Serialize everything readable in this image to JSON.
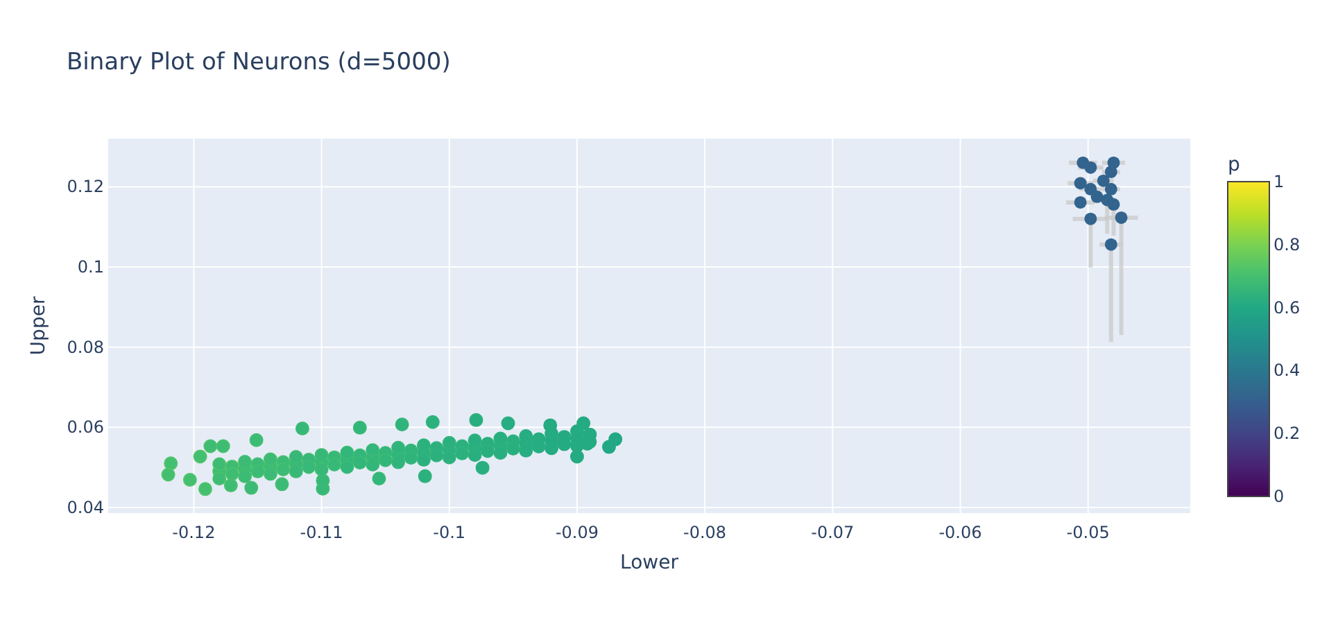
{
  "chart_data": {
    "type": "scatter",
    "title": "Binary Plot of Neurons (d=5000)",
    "xlabel": "Lower",
    "ylabel": "Upper",
    "clabel": "p",
    "xlim": [
      -0.1267,
      -0.042
    ],
    "ylim": [
      0.0386,
      0.132
    ],
    "xticks": [
      -0.12,
      -0.11,
      -0.1,
      -0.09,
      -0.08,
      -0.07,
      -0.06,
      -0.05
    ],
    "yticks": [
      0.04,
      0.06,
      0.08,
      0.1,
      0.12
    ],
    "clim": [
      0,
      1
    ],
    "cticks": [
      0,
      0.2,
      0.4,
      0.6,
      0.8,
      1
    ],
    "grid": true,
    "marker": "circle",
    "series": [
      {
        "x": [
          -0.1218,
          -0.122,
          -0.1203,
          -0.1191,
          -0.1187,
          -0.1195,
          -0.1177,
          -0.1151,
          -0.1115,
          -0.1099,
          -0.1155,
          -0.107,
          -0.1037,
          -0.1013,
          -0.0979,
          -0.0954,
          -0.0921,
          -0.0895,
          -0.087,
          -0.0875,
          -0.0892,
          -0.09,
          -0.0974,
          -0.1019,
          -0.1055,
          -0.1099,
          -0.1131,
          -0.1171,
          -0.118,
          -0.116,
          -0.114,
          -0.112,
          -0.11,
          -0.108,
          -0.106,
          -0.104,
          -0.102,
          -0.1,
          -0.098,
          -0.096,
          -0.094,
          -0.092,
          -0.09,
          -0.118,
          -0.116,
          -0.114,
          -0.112,
          -0.11,
          -0.108,
          -0.106,
          -0.104,
          -0.102,
          -0.1,
          -0.098,
          -0.096,
          -0.094,
          -0.092,
          -0.09,
          -0.118,
          -0.116,
          -0.114,
          -0.112,
          -0.11,
          -0.108,
          -0.106,
          -0.104,
          -0.102,
          -0.1,
          -0.098,
          -0.096,
          -0.094,
          -0.092,
          -0.09,
          -0.117,
          -0.115,
          -0.113,
          -0.111,
          -0.109,
          -0.107,
          -0.105,
          -0.103,
          -0.101,
          -0.099,
          -0.097,
          -0.095,
          -0.093,
          -0.091,
          -0.089,
          -0.117,
          -0.115,
          -0.113,
          -0.111,
          -0.109,
          -0.107,
          -0.105,
          -0.103,
          -0.101,
          -0.099,
          -0.097,
          -0.095,
          -0.093,
          -0.091,
          -0.089
        ],
        "values": [
          0.051,
          0.0482,
          0.0469,
          0.0446,
          0.0553,
          0.0527,
          0.0553,
          0.0568,
          0.0597,
          0.0447,
          0.0449,
          0.0599,
          0.0607,
          0.0613,
          0.0618,
          0.061,
          0.0605,
          0.061,
          0.057,
          0.0551,
          0.0559,
          0.0527,
          0.0499,
          0.0478,
          0.0472,
          0.0467,
          0.0458,
          0.0455,
          0.049,
          0.0496,
          0.0502,
          0.0508,
          0.0513,
          0.0519,
          0.0525,
          0.0531,
          0.0537,
          0.0543,
          0.0549,
          0.0554,
          0.056,
          0.0566,
          0.0572,
          0.0508,
          0.0514,
          0.052,
          0.0526,
          0.0531,
          0.0537,
          0.0543,
          0.0549,
          0.0555,
          0.0561,
          0.0567,
          0.0572,
          0.0578,
          0.0584,
          0.059,
          0.0472,
          0.0478,
          0.0484,
          0.049,
          0.0495,
          0.0501,
          0.0507,
          0.0513,
          0.0519,
          0.0525,
          0.0531,
          0.0536,
          0.0542,
          0.0548,
          0.0554,
          0.0502,
          0.0508,
          0.0513,
          0.0519,
          0.0525,
          0.053,
          0.0536,
          0.0542,
          0.0548,
          0.0553,
          0.0559,
          0.0565,
          0.057,
          0.0576,
          0.0582,
          0.0484,
          0.049,
          0.0495,
          0.0501,
          0.0507,
          0.0512,
          0.0518,
          0.0524,
          0.053,
          0.0535,
          0.0541,
          0.0547,
          0.0552,
          0.0558,
          0.0564
        ],
        "cvalues": [
          0.7,
          0.7,
          0.7,
          0.7,
          0.69,
          0.7,
          0.69,
          0.68,
          0.67,
          0.67,
          0.68,
          0.66,
          0.65,
          0.64,
          0.63,
          0.62,
          0.61,
          0.61,
          0.6,
          0.6,
          0.61,
          0.61,
          0.63,
          0.64,
          0.66,
          0.67,
          0.68,
          0.69,
          0.69,
          0.68,
          0.68,
          0.67,
          0.67,
          0.66,
          0.66,
          0.65,
          0.64,
          0.64,
          0.63,
          0.63,
          0.62,
          0.61,
          0.61,
          0.69,
          0.68,
          0.68,
          0.67,
          0.67,
          0.66,
          0.66,
          0.65,
          0.64,
          0.64,
          0.63,
          0.63,
          0.62,
          0.61,
          0.61,
          0.69,
          0.68,
          0.68,
          0.67,
          0.67,
          0.66,
          0.66,
          0.65,
          0.64,
          0.64,
          0.63,
          0.63,
          0.62,
          0.61,
          0.61,
          0.69,
          0.68,
          0.68,
          0.67,
          0.67,
          0.66,
          0.66,
          0.65,
          0.64,
          0.64,
          0.63,
          0.63,
          0.62,
          0.61,
          0.61,
          0.69,
          0.68,
          0.68,
          0.67,
          0.67,
          0.66,
          0.66,
          0.65,
          0.64,
          0.64,
          0.63,
          0.63,
          0.62,
          0.61,
          0.61
        ],
        "colors": [
          "#50c46a",
          "#50c46a",
          "#50c46a",
          "#50c46a",
          "#4ac16d",
          "#50c46a",
          "#4ac16d",
          "#44bf70",
          "#3fbc73",
          "#3fbc73",
          "#44bf70",
          "#3aba76",
          "#35b779",
          "#2fb47c",
          "#2cb17e",
          "#28ae80",
          "#25ab82",
          "#25ab82",
          "#22a884",
          "#22a884",
          "#25ab82",
          "#25ab82",
          "#2cb17e",
          "#2fb47c",
          "#3aba76",
          "#3fbc73",
          "#44bf70",
          "#4ac16d",
          "#4ac16d",
          "#44bf70",
          "#44bf70",
          "#3fbc73",
          "#3fbc73",
          "#3aba76",
          "#3aba76",
          "#35b779",
          "#2fb47c",
          "#2fb47c",
          "#2cb17e",
          "#2cb17e",
          "#28ae80",
          "#25ab82",
          "#25ab82",
          "#4ac16d",
          "#44bf70",
          "#44bf70",
          "#3fbc73",
          "#3fbc73",
          "#3aba76",
          "#3aba76",
          "#35b779",
          "#2fb47c",
          "#2fb47c",
          "#2cb17e",
          "#2cb17e",
          "#28ae80",
          "#25ab82",
          "#25ab82",
          "#4ac16d",
          "#44bf70",
          "#44bf70",
          "#3fbc73",
          "#3fbc73",
          "#3aba76",
          "#3aba76",
          "#35b779",
          "#2fb47c",
          "#2fb47c",
          "#2cb17e",
          "#2cb17e",
          "#28ae80",
          "#25ab82",
          "#25ab82",
          "#4ac16d",
          "#44bf70",
          "#44bf70",
          "#3fbc73",
          "#3fbc73",
          "#3aba76",
          "#3aba76",
          "#35b779",
          "#2fb47c",
          "#2fb47c",
          "#2cb17e",
          "#2cb17e",
          "#28ae80",
          "#25ab82",
          "#25ab82",
          "#4ac16d",
          "#44bf70",
          "#44bf70",
          "#3fbc73",
          "#3fbc73",
          "#3aba76",
          "#3aba76",
          "#35b779",
          "#2fb47c",
          "#2fb47c",
          "#2cb17e",
          "#2cb17e",
          "#28ae80",
          "#25ab82",
          "#25ab82"
        ]
      },
      {
        "x": [
          -0.0504,
          -0.048,
          -0.0498,
          -0.0482,
          -0.0506,
          -0.0488,
          -0.0498,
          -0.0482,
          -0.0493,
          -0.0485,
          -0.048,
          -0.0506,
          -0.0498,
          -0.0474,
          -0.0482
        ],
        "values": [
          0.126,
          0.126,
          0.1248,
          0.1237,
          0.1209,
          0.1215,
          0.1194,
          0.1194,
          0.1175,
          0.1167,
          0.1156,
          0.1161,
          0.112,
          0.1123,
          0.1056
        ],
        "cvalues": [
          0.32,
          0.32,
          0.32,
          0.32,
          0.32,
          0.32,
          0.32,
          0.32,
          0.32,
          0.32,
          0.32,
          0.32,
          0.32,
          0.32,
          0.32
        ],
        "errors": [
          null,
          null,
          null,
          null,
          null,
          null,
          null,
          null,
          null,
          [
            0.1083,
            0.1172
          ],
          [
            0.1078,
            0.116
          ],
          null,
          [
            0.0999,
            0.1125
          ],
          [
            0.083,
            0.1128
          ],
          [
            0.0813,
            0.106
          ]
        ],
        "xerrors": [
          [
            -0.0515,
            -0.0493
          ],
          [
            -0.0489,
            -0.0471
          ],
          [
            -0.0508,
            -0.0488
          ],
          [
            -0.0489,
            -0.0475
          ],
          [
            -0.0516,
            -0.0496
          ],
          [
            -0.0496,
            -0.048
          ],
          [
            -0.0507,
            -0.0489
          ],
          [
            -0.0489,
            -0.0475
          ],
          null,
          [
            -0.0491,
            -0.0479
          ],
          null,
          [
            -0.0517,
            -0.0495
          ],
          [
            -0.0512,
            -0.0484
          ],
          [
            -0.0487,
            -0.0461
          ],
          [
            -0.0491,
            -0.0473
          ]
        ]
      }
    ]
  }
}
